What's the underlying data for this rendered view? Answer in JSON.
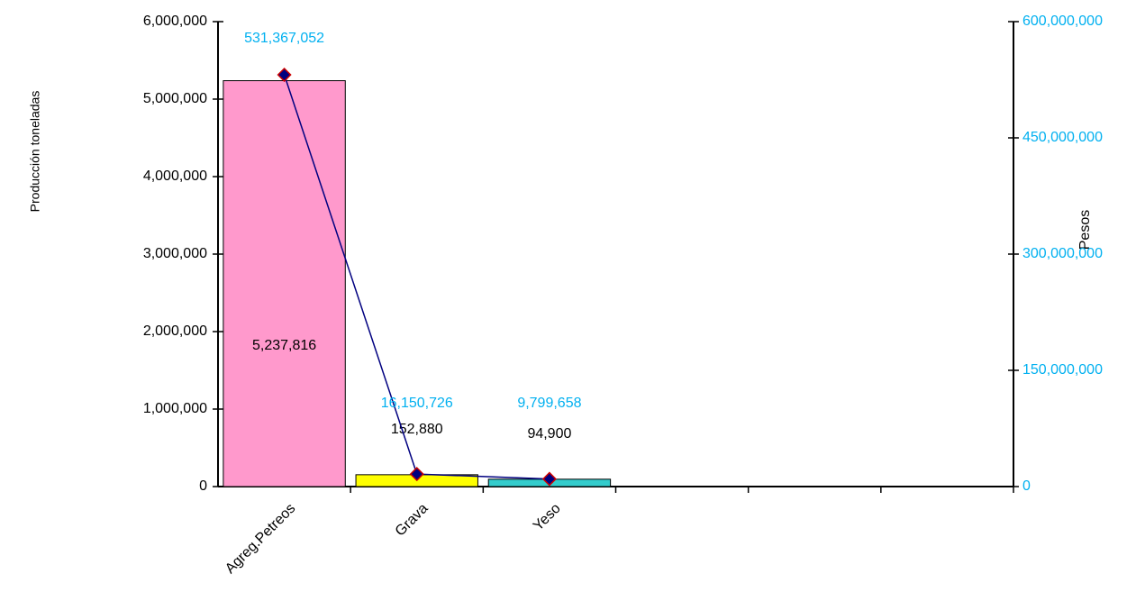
{
  "chart_data": {
    "type": "bar",
    "ylabel": "Producción toneladas",
    "y2label": "Pesos",
    "categories": [
      "Agreg.Petreos",
      "Grava",
      "Yeso",
      null,
      null,
      null
    ],
    "series": [
      {
        "type": "bar",
        "colors": [
          "#ff99cc",
          "#ffff00",
          "#33cccc"
        ],
        "values": [
          5237816,
          152880,
          94900,
          null,
          null,
          null
        ],
        "value_labels": [
          "5,237,816",
          "152,880",
          "94,900",
          null,
          null,
          null
        ]
      },
      {
        "type": "line",
        "axis": "y2",
        "color": "#000080",
        "marker_edge": "#cc0000",
        "values": [
          531367052,
          16150726,
          9799658,
          null,
          null,
          null
        ],
        "value_labels": [
          "531,367,052",
          "16,150,726",
          "9,799,658",
          null,
          null,
          null
        ]
      }
    ],
    "ylim": [
      0,
      6000000
    ],
    "yticks": [
      0,
      {
        "value": 1000000,
        "label": "1,000,000"
      },
      {
        "value": 2000000,
        "label": "2,000,000"
      },
      {
        "value": 3000000,
        "label": "3,000,000"
      },
      {
        "value": 4000000,
        "label": "4,000,000"
      },
      {
        "value": 5000000,
        "label": "5,000,000"
      },
      {
        "value": 6000000,
        "label": "6,000,000"
      }
    ],
    "y2lim": [
      0,
      600000000
    ],
    "y2ticks": [
      0,
      {
        "value": 150000000,
        "label": "150,000,000"
      },
      {
        "value": 300000000,
        "label": "300,000,000"
      },
      {
        "value": 450000000,
        "label": "450,000,000"
      },
      {
        "value": 600000000,
        "label": "600,000,000"
      }
    ],
    "y2color": "#00b0f0"
  }
}
